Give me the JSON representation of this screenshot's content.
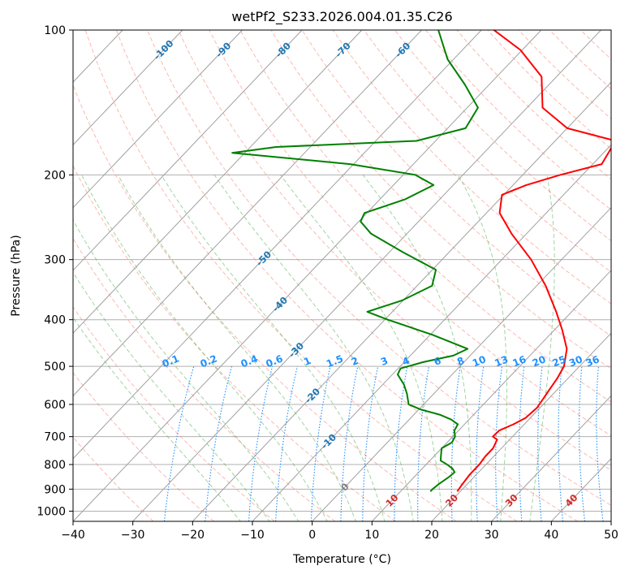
{
  "chart_data": {
    "type": "skew-t",
    "title": "wetPf2_S233.2026.004.01.35.C26",
    "xlabel": "Temperature (°C)",
    "ylabel": "Pressure (hPa)",
    "xlim": [
      -40,
      50
    ],
    "ylim": [
      1050,
      100
    ],
    "y_scale": "log",
    "grid": true,
    "x_ticks": [
      -40,
      -30,
      -20,
      -10,
      0,
      10,
      20,
      30,
      40,
      50
    ],
    "y_ticks": [
      100,
      200,
      300,
      400,
      500,
      600,
      700,
      800,
      900,
      1000
    ],
    "y_tick_labels": [
      "100",
      "200",
      "300",
      "400",
      "500",
      "600",
      "700",
      "800",
      "900",
      "1000"
    ],
    "series": [
      {
        "color": "#ff0000",
        "points": [
          [
            19.5,
            910
          ],
          [
            19.2,
            880
          ],
          [
            18.9,
            840
          ],
          [
            18.9,
            800
          ],
          [
            18.6,
            770
          ],
          [
            18.6,
            740
          ],
          [
            17.9,
            710
          ],
          [
            16.7,
            700
          ],
          [
            16.8,
            680
          ],
          [
            18.2,
            660
          ],
          [
            19.2,
            640
          ],
          [
            19.5,
            610
          ],
          [
            19.2,
            590
          ],
          [
            18.7,
            560
          ],
          [
            18.2,
            530
          ],
          [
            17.4,
            500
          ],
          [
            15.1,
            460
          ],
          [
            11.3,
            420
          ],
          [
            7.4,
            385
          ],
          [
            1.5,
            340
          ],
          [
            -5.1,
            300
          ],
          [
            -12.5,
            265
          ],
          [
            -17.8,
            240
          ],
          [
            -20.3,
            220
          ],
          [
            -17.8,
            210
          ],
          [
            -13.7,
            200
          ],
          [
            -8.5,
            190
          ],
          [
            -9.9,
            170
          ],
          [
            -20.0,
            160
          ],
          [
            -27.4,
            145
          ],
          [
            -32.5,
            125
          ],
          [
            -40.3,
            110
          ],
          [
            -47.9,
            100
          ]
        ]
      },
      {
        "color": "#008000",
        "points": [
          [
            15.0,
            910
          ],
          [
            15.0,
            900
          ],
          [
            15.2,
            880
          ],
          [
            15.8,
            850
          ],
          [
            16.0,
            830
          ],
          [
            15.0,
            815
          ],
          [
            13.5,
            800
          ],
          [
            11.8,
            785
          ],
          [
            10.8,
            760
          ],
          [
            10.0,
            740
          ],
          [
            10.8,
            720
          ],
          [
            10.4,
            700
          ],
          [
            9.3,
            680
          ],
          [
            8.9,
            660
          ],
          [
            7.0,
            645
          ],
          [
            4.3,
            630
          ],
          [
            0.4,
            615
          ],
          [
            -2.5,
            600
          ],
          [
            -4.5,
            570
          ],
          [
            -6.5,
            545
          ],
          [
            -9.1,
            520
          ],
          [
            -9.6,
            505
          ],
          [
            -6.8,
            490
          ],
          [
            -2.8,
            475
          ],
          [
            -1.5,
            460
          ],
          [
            -9.6,
            430
          ],
          [
            -19.5,
            400
          ],
          [
            -24.2,
            385
          ],
          [
            -20.2,
            365
          ],
          [
            -17.5,
            340
          ],
          [
            -19.4,
            315
          ],
          [
            -27.6,
            290
          ],
          [
            -36.0,
            265
          ],
          [
            -39.7,
            250
          ],
          [
            -40.4,
            240
          ],
          [
            -35.8,
            225
          ],
          [
            -33.3,
            210
          ],
          [
            -38.0,
            200
          ],
          [
            -50.6,
            190
          ],
          [
            -72.1,
            180
          ],
          [
            -65.7,
            175
          ],
          [
            -43.2,
            170
          ],
          [
            -37.0,
            160
          ],
          [
            -38.2,
            145
          ],
          [
            -44.0,
            130
          ],
          [
            -51.0,
            115
          ],
          [
            -57.2,
            100
          ]
        ]
      }
    ],
    "dry_adiabats_C": [
      -30,
      -20,
      -10,
      0,
      10,
      20,
      30,
      40,
      50,
      60,
      70,
      80,
      90,
      100,
      110,
      120,
      130,
      140,
      150,
      160,
      170,
      180,
      190,
      200,
      210,
      220,
      230
    ],
    "moist_adiabats_C": [
      -15,
      -10,
      -5,
      0,
      5,
      10,
      15,
      20,
      25,
      30,
      35
    ],
    "isotherm_labels_blue": [
      "-100",
      "-90",
      "-80",
      "-70",
      "-60",
      "-50",
      "-40",
      "-30",
      "-20",
      "-10"
    ],
    "isotherm_labels_blue_values": [
      -100,
      -90,
      -80,
      -70,
      -60,
      -50,
      -40,
      -30,
      -20,
      -10
    ],
    "isotherm_label_zero": "0",
    "isotherm_labels_red": [
      "10",
      "20",
      "30",
      "40"
    ],
    "isotherm_labels_red_values": [
      10,
      20,
      30,
      40
    ],
    "mixing_ratio_labels": [
      "0.1",
      "0.2",
      "0.4",
      "0.6",
      "1",
      "1.5",
      "2",
      "3",
      "4",
      "6",
      "8",
      "10",
      "13",
      "16",
      "20",
      "25",
      "30",
      "36"
    ],
    "mixing_ratio_values": [
      0.1,
      0.2,
      0.4,
      0.6,
      1,
      1.5,
      2,
      3,
      4,
      6,
      8,
      10,
      13,
      16,
      20,
      25,
      30,
      36
    ],
    "colors": {
      "temperature": "#ff0000",
      "dewpoint": "#008000",
      "isotherm_label_cold": "#1f77b4",
      "isotherm_label_zero": "#7f7f7f",
      "isotherm_label_warm": "#d62728",
      "mixing_ratio": "#1e90ff",
      "dry_adiabat": "#fa8072",
      "moist_adiabat": "#2ca02c",
      "grid": "#b0b0b0"
    }
  }
}
